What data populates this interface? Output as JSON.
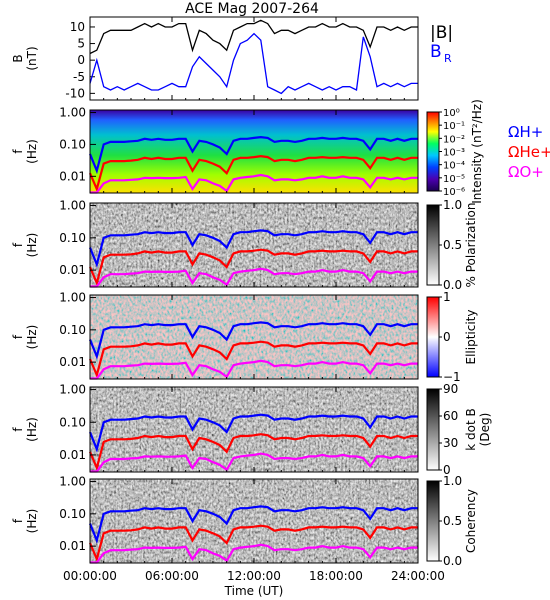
{
  "title": "ACE Mag 2007-264",
  "colors": {
    "total_field": "#000000",
    "radial_field": "#0000ff",
    "proton_cyclotron": "#0000ff",
    "helium_cyclotron": "#ff0000",
    "oxygen_cyclotron": "#ff00ff"
  },
  "chart_data": [
    {
      "type": "line",
      "panel": "field",
      "ylabel": "B",
      "yunit": "(nT)",
      "ylim": [
        -12,
        13
      ],
      "yticks": [
        "10",
        "5",
        "0",
        "-5",
        "-10"
      ],
      "xlim": [
        0,
        24
      ],
      "legend": {
        "placement": "right",
        "entries": [
          "|B|",
          "B",
          "R"
        ]
      },
      "series": [
        {
          "name": "|B|",
          "color": "black",
          "x": [
            0,
            0.5,
            1,
            1.5,
            2,
            2.5,
            3,
            3.5,
            4,
            4.5,
            5,
            5.5,
            6,
            6.5,
            7,
            7.5,
            8,
            8.5,
            9,
            9.5,
            10,
            10.5,
            11,
            11.5,
            12,
            12.5,
            13,
            13.5,
            14,
            14.5,
            15,
            15.5,
            16,
            16.5,
            17,
            17.5,
            18,
            18.5,
            19,
            19.5,
            20,
            20.5,
            21,
            21.5,
            22,
            22.5,
            23,
            23.5,
            24
          ],
          "values": [
            2,
            3,
            8,
            9,
            9,
            9,
            9,
            10,
            11,
            10,
            11,
            10,
            10,
            11,
            11,
            3,
            9,
            8,
            6,
            5,
            3,
            9,
            10,
            11,
            11,
            12,
            11,
            8,
            9,
            9,
            8,
            9,
            10,
            10,
            11,
            10,
            10,
            11,
            10,
            10,
            9,
            4,
            10,
            10,
            9,
            10,
            9,
            10,
            10
          ]
        },
        {
          "name": "B R",
          "color": "blue",
          "x": [
            0,
            0.5,
            1,
            1.5,
            2,
            2.5,
            3,
            3.5,
            4,
            4.5,
            5,
            5.5,
            6,
            6.5,
            7,
            7.5,
            8,
            8.5,
            9,
            9.5,
            10,
            10.5,
            11,
            11.5,
            12,
            12.5,
            13,
            13.5,
            14,
            14.5,
            15,
            15.5,
            16,
            16.5,
            17,
            17.5,
            18,
            18.5,
            19,
            19.5,
            20,
            20.5,
            21,
            21.5,
            22,
            22.5,
            23,
            23.5,
            24
          ],
          "values": [
            -7,
            0,
            -8,
            -9,
            -8,
            -9,
            -8,
            -7,
            -8,
            -9,
            -9,
            -8,
            -7,
            -8,
            -8,
            -2,
            1,
            -1,
            -3,
            -5,
            -8,
            0,
            5,
            6,
            8,
            6,
            -8,
            -9,
            -10,
            -8,
            -9,
            -8,
            -7,
            -8,
            -9,
            -8,
            -9,
            -8,
            -8,
            -9,
            7,
            1,
            -8,
            -7,
            -8,
            -7,
            -8,
            -7,
            -7
          ]
        }
      ]
    },
    {
      "type": "heatmap",
      "panel": "intensity",
      "ylabel": "f",
      "yunit": "(Hz)",
      "yscale": "log",
      "ylim": [
        0.003,
        1.2
      ],
      "yticks": [
        "1.00",
        "0.10",
        "0.01"
      ],
      "colorbar": {
        "label": "Intensity (nT²/Hz)",
        "scale": "log",
        "ticks": [
          "10⁰",
          "10⁻¹",
          "10⁻²",
          "10⁻³",
          "10⁻⁴",
          "10⁻⁵",
          "10⁻⁶"
        ],
        "colormap": "rainbow"
      },
      "legend": {
        "placement": "right",
        "entries": [
          "ΩH+",
          "ΩHe+",
          "ΩO+"
        ]
      }
    },
    {
      "type": "heatmap",
      "panel": "polarization",
      "ylabel": "f",
      "yunit": "(Hz)",
      "yscale": "log",
      "ylim": [
        0.003,
        1.2
      ],
      "yticks": [
        "1.00",
        "0.10",
        "0.01"
      ],
      "colorbar": {
        "label": "% Polarization",
        "ticks": [
          "1.0",
          "0.5",
          "0.0"
        ],
        "colormap": "gray"
      }
    },
    {
      "type": "heatmap",
      "panel": "ellipticity",
      "ylabel": "f",
      "yunit": "(Hz)",
      "yscale": "log",
      "ylim": [
        0.003,
        1.2
      ],
      "yticks": [
        "1.00",
        "0.10",
        "0.01"
      ],
      "colorbar": {
        "label": "Ellipticity",
        "ticks": [
          "1",
          "0",
          "−1"
        ],
        "colormap": "blue-white-red"
      }
    },
    {
      "type": "heatmap",
      "panel": "wave-normal-angle",
      "ylabel": "f",
      "yunit": "(Hz)",
      "yscale": "log",
      "ylim": [
        0.003,
        1.2
      ],
      "yticks": [
        "1.00",
        "0.10",
        "0.01"
      ],
      "colorbar": {
        "label": "k dot B",
        "unit": "(Deg)",
        "ticks": [
          "90",
          "60",
          "30",
          "0"
        ],
        "colormap": "gray"
      }
    },
    {
      "type": "heatmap",
      "panel": "coherency",
      "ylabel": "f",
      "yunit": "(Hz)",
      "yscale": "log",
      "ylim": [
        0.003,
        1.2
      ],
      "yticks": [
        "1.00",
        "0.10",
        "0.01"
      ],
      "colorbar": {
        "label": "Coherency",
        "ticks": [
          "1.0",
          "0.5",
          "0.0"
        ],
        "colormap": "gray"
      }
    }
  ],
  "cyclotron_frequencies": {
    "x": [
      0,
      0.5,
      1,
      1.5,
      2,
      2.5,
      3,
      3.5,
      4,
      4.5,
      5,
      5.5,
      6,
      6.5,
      7,
      7.5,
      8,
      8.5,
      9,
      9.5,
      10,
      10.5,
      11,
      11.5,
      12,
      12.5,
      13,
      13.5,
      14,
      14.5,
      15,
      15.5,
      16,
      16.5,
      17,
      17.5,
      18,
      18.5,
      19,
      19.5,
      20,
      20.5,
      21,
      21.5,
      22,
      22.5,
      23,
      23.5,
      24
    ],
    "H+": [
      0.05,
      0.015,
      0.1,
      0.12,
      0.12,
      0.12,
      0.125,
      0.13,
      0.15,
      0.14,
      0.15,
      0.14,
      0.14,
      0.15,
      0.15,
      0.06,
      0.13,
      0.12,
      0.1,
      0.08,
      0.05,
      0.13,
      0.15,
      0.15,
      0.16,
      0.17,
      0.16,
      0.12,
      0.13,
      0.13,
      0.12,
      0.13,
      0.15,
      0.15,
      0.16,
      0.15,
      0.15,
      0.16,
      0.15,
      0.15,
      0.13,
      0.07,
      0.15,
      0.15,
      0.13,
      0.15,
      0.13,
      0.15,
      0.15
    ],
    "He+": [
      0.0125,
      0.004,
      0.025,
      0.03,
      0.03,
      0.03,
      0.031,
      0.033,
      0.038,
      0.035,
      0.038,
      0.035,
      0.035,
      0.038,
      0.038,
      0.015,
      0.033,
      0.03,
      0.025,
      0.02,
      0.0125,
      0.033,
      0.038,
      0.038,
      0.04,
      0.043,
      0.04,
      0.03,
      0.033,
      0.033,
      0.03,
      0.033,
      0.038,
      0.038,
      0.04,
      0.038,
      0.038,
      0.04,
      0.038,
      0.038,
      0.033,
      0.018,
      0.038,
      0.038,
      0.033,
      0.038,
      0.033,
      0.038,
      0.038
    ],
    "O+": [
      0.0031,
      0.0031,
      0.006,
      0.0075,
      0.0075,
      0.0075,
      0.0078,
      0.008,
      0.009,
      0.0088,
      0.009,
      0.0088,
      0.0088,
      0.009,
      0.0095,
      0.004,
      0.008,
      0.0075,
      0.006,
      0.005,
      0.0035,
      0.008,
      0.009,
      0.0095,
      0.01,
      0.011,
      0.01,
      0.0075,
      0.008,
      0.008,
      0.0075,
      0.008,
      0.009,
      0.009,
      0.01,
      0.009,
      0.009,
      0.01,
      0.009,
      0.009,
      0.008,
      0.0045,
      0.009,
      0.009,
      0.008,
      0.009,
      0.008,
      0.009,
      0.009
    ]
  },
  "x_axis": {
    "label": "Time (UT)",
    "ticks": [
      0,
      6,
      12,
      18,
      24
    ],
    "tick_labels": [
      "00:00:00",
      "06:00:00",
      "12:00:00",
      "18:00:00",
      "24:00:00"
    ]
  }
}
